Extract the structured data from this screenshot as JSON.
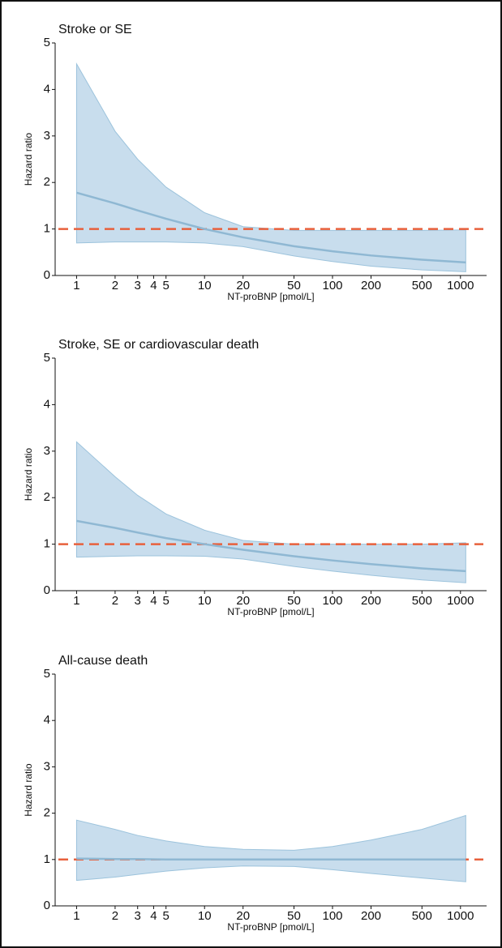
{
  "chart_data": [
    {
      "type": "line",
      "title": "Stroke or SE",
      "xlabel": "NT-proBNP [pmol/L]",
      "ylabel": "Hazard ratio",
      "x": [
        1,
        2,
        3,
        5,
        10,
        20,
        50,
        100,
        200,
        500,
        1100
      ],
      "values": [
        1.78,
        1.55,
        1.4,
        1.22,
        1.0,
        0.82,
        0.63,
        0.52,
        0.43,
        0.34,
        0.28
      ],
      "upper": [
        4.55,
        3.1,
        2.5,
        1.9,
        1.35,
        1.05,
        0.97,
        0.97,
        0.97,
        0.97,
        0.98
      ],
      "lower": [
        0.7,
        0.72,
        0.72,
        0.72,
        0.7,
        0.62,
        0.42,
        0.3,
        0.2,
        0.12,
        0.08
      ],
      "color": "#8fb8d3",
      "band_color": "#c8dded",
      "reference_line": 1,
      "reference_color": "#e8603c",
      "xscale": "log",
      "xlim": [
        0.68,
        1600
      ],
      "xticks": [
        1,
        2,
        3,
        4,
        5,
        10,
        20,
        50,
        100,
        200,
        500,
        1000
      ],
      "ylim": [
        0,
        5
      ],
      "yticks": [
        0,
        1,
        2,
        3,
        4,
        5
      ]
    },
    {
      "type": "line",
      "title": "Stroke, SE or cardiovascular death",
      "xlabel": "NT-proBNP [pmol/L]",
      "ylabel": "Hazard ratio",
      "x": [
        1,
        2,
        3,
        5,
        10,
        20,
        50,
        100,
        200,
        500,
        1100
      ],
      "values": [
        1.5,
        1.35,
        1.25,
        1.13,
        1.0,
        0.88,
        0.74,
        0.65,
        0.57,
        0.48,
        0.42
      ],
      "upper": [
        3.2,
        2.45,
        2.05,
        1.65,
        1.3,
        1.08,
        1.0,
        1.0,
        1.0,
        1.0,
        1.03
      ],
      "lower": [
        0.72,
        0.74,
        0.75,
        0.75,
        0.74,
        0.68,
        0.52,
        0.42,
        0.33,
        0.23,
        0.17
      ],
      "color": "#8fb8d3",
      "band_color": "#c8dded",
      "reference_line": 1,
      "reference_color": "#e8603c",
      "xscale": "log",
      "xlim": [
        0.68,
        1600
      ],
      "xticks": [
        1,
        2,
        3,
        4,
        5,
        10,
        20,
        50,
        100,
        200,
        500,
        1000
      ],
      "ylim": [
        0,
        5
      ],
      "yticks": [
        0,
        1,
        2,
        3,
        4,
        5
      ]
    },
    {
      "type": "line",
      "title": "All-cause death",
      "xlabel": "NT-proBNP [pmol/L]",
      "ylabel": "Hazard ratio",
      "x": [
        1,
        2,
        3,
        5,
        10,
        20,
        50,
        100,
        200,
        500,
        1100
      ],
      "values": [
        1.02,
        1.01,
        1.01,
        1.0,
        1.0,
        1.0,
        1.0,
        1.0,
        1.0,
        1.0,
        1.0
      ],
      "upper": [
        1.85,
        1.65,
        1.52,
        1.4,
        1.28,
        1.22,
        1.2,
        1.28,
        1.42,
        1.65,
        1.95
      ],
      "lower": [
        0.55,
        0.62,
        0.68,
        0.75,
        0.82,
        0.86,
        0.85,
        0.78,
        0.7,
        0.6,
        0.52
      ],
      "color": "#8fb8d3",
      "band_color": "#c8dded",
      "reference_line": 1,
      "reference_color": "#e8603c",
      "xscale": "log",
      "xlim": [
        0.68,
        1600
      ],
      "xticks": [
        1,
        2,
        3,
        4,
        5,
        10,
        20,
        50,
        100,
        200,
        500,
        1000
      ],
      "ylim": [
        0,
        5
      ],
      "yticks": [
        0,
        1,
        2,
        3,
        4,
        5
      ]
    }
  ]
}
